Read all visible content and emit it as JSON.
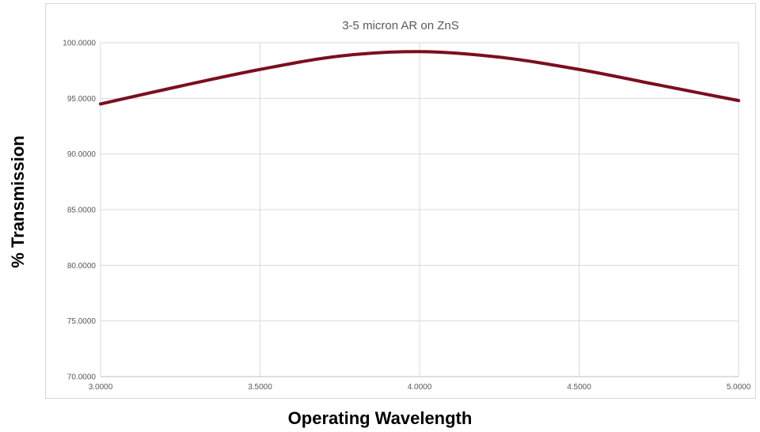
{
  "chart_data": {
    "type": "line",
    "title": "3-5 micron AR on ZnS",
    "xlabel": "Operating Wavelength",
    "ylabel": "% Transmission",
    "xlim": [
      3.0,
      5.0
    ],
    "ylim": [
      70.0,
      100.0
    ],
    "x_ticks": [
      "3.0000",
      "3.5000",
      "4.0000",
      "4.5000",
      "5.0000"
    ],
    "y_ticks": [
      "70.0000",
      "75.0000",
      "80.0000",
      "85.0000",
      "90.0000",
      "95.0000",
      "100.0000"
    ],
    "grid": true,
    "series": [
      {
        "color": "#7b0f1e",
        "x": [
          3.0,
          3.25,
          3.5,
          3.75,
          4.0,
          4.25,
          4.5,
          4.75,
          5.0
        ],
        "y": [
          94.5,
          96.1,
          97.6,
          98.8,
          99.2,
          98.7,
          97.6,
          96.2,
          94.8
        ]
      }
    ]
  }
}
